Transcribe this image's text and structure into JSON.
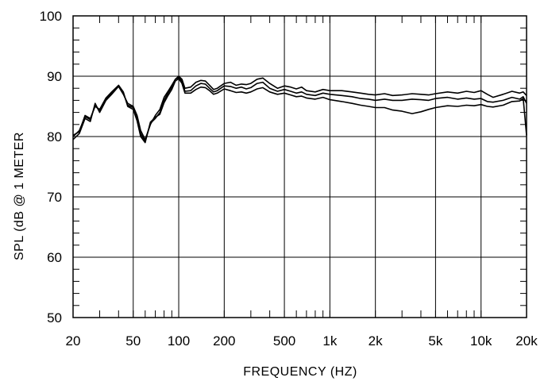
{
  "chart_data": {
    "type": "line",
    "title": "",
    "xlabel": "FREQUENCY  (HZ)",
    "ylabel": "SPL (dB @ 1 METER",
    "xscale": "log",
    "xlim": [
      20,
      20000
    ],
    "ylim": [
      50,
      100
    ],
    "grid": true,
    "legend": "none",
    "line_color": "#000000",
    "x_ticks": [
      {
        "value": 20,
        "label": "20"
      },
      {
        "value": 50,
        "label": "50"
      },
      {
        "value": 100,
        "label": "100"
      },
      {
        "value": 200,
        "label": "200"
      },
      {
        "value": 500,
        "label": "500"
      },
      {
        "value": 1000,
        "label": "1k"
      },
      {
        "value": 2000,
        "label": "2k"
      },
      {
        "value": 5000,
        "label": "5k"
      },
      {
        "value": 10000,
        "label": "10k"
      },
      {
        "value": 20000,
        "label": "20k"
      }
    ],
    "y_ticks": [
      {
        "value": 50,
        "label": "50"
      },
      {
        "value": 60,
        "label": "60"
      },
      {
        "value": 70,
        "label": "70"
      },
      {
        "value": 80,
        "label": "80"
      },
      {
        "value": 90,
        "label": "90"
      },
      {
        "value": 100,
        "label": "100"
      }
    ],
    "x": [
      20,
      22,
      24,
      26,
      28,
      30,
      33,
      36,
      40,
      43,
      46,
      50,
      53,
      56,
      60,
      65,
      70,
      75,
      80,
      85,
      90,
      95,
      100,
      105,
      110,
      120,
      130,
      140,
      150,
      160,
      170,
      180,
      200,
      220,
      240,
      260,
      280,
      300,
      330,
      360,
      400,
      450,
      500,
      550,
      600,
      650,
      700,
      800,
      900,
      1000,
      1200,
      1400,
      1600,
      1800,
      2000,
      2300,
      2600,
      3000,
      3500,
      4000,
      4500,
      5000,
      6000,
      7000,
      8000,
      9000,
      10000,
      11000,
      12000,
      14000,
      16000,
      18000,
      19000,
      20000
    ],
    "series": [
      {
        "values": [
          79.5,
          80.5,
          83.0,
          82.5,
          85.5,
          84.0,
          86.0,
          87.0,
          88.3,
          87.0,
          85.5,
          85.0,
          83.5,
          81.0,
          79.5,
          82.0,
          83.5,
          84.5,
          86.5,
          87.5,
          88.5,
          89.5,
          90.0,
          89.5,
          88.0,
          88.2,
          89.0,
          89.3,
          89.2,
          88.5,
          87.8,
          88.0,
          88.8,
          89.0,
          88.5,
          88.7,
          88.6,
          88.8,
          89.5,
          89.7,
          88.8,
          88.0,
          88.4,
          88.2,
          87.9,
          88.2,
          87.6,
          87.4,
          87.8,
          87.6,
          87.6,
          87.4,
          87.2,
          87.0,
          86.9,
          87.1,
          86.8,
          86.9,
          87.1,
          87.0,
          86.9,
          87.1,
          87.4,
          87.2,
          87.5,
          87.3,
          87.6,
          87.0,
          86.5,
          87.0,
          87.5,
          87.2,
          87.4,
          86.8
        ]
      },
      {
        "values": [
          80.0,
          81.0,
          83.3,
          82.8,
          85.2,
          84.2,
          86.2,
          87.2,
          88.4,
          87.2,
          85.2,
          84.8,
          83.0,
          80.5,
          79.2,
          82.2,
          83.0,
          84.0,
          86.0,
          87.2,
          88.2,
          89.5,
          89.8,
          89.2,
          87.5,
          87.6,
          88.4,
          88.8,
          88.7,
          88.0,
          87.4,
          87.6,
          88.4,
          88.3,
          88.0,
          88.2,
          87.9,
          88.1,
          88.8,
          89.0,
          88.0,
          87.5,
          87.8,
          87.5,
          87.2,
          87.4,
          87.0,
          86.8,
          87.2,
          87.0,
          86.8,
          86.6,
          86.3,
          86.2,
          86.0,
          86.2,
          86.0,
          86.0,
          86.2,
          86.1,
          86.0,
          86.3,
          86.5,
          86.2,
          86.4,
          86.2,
          86.3,
          85.8,
          85.7,
          86.0,
          86.5,
          86.2,
          86.6,
          85.5
        ]
      },
      {
        "values": [
          80.2,
          80.8,
          83.5,
          83.0,
          85.0,
          84.5,
          86.4,
          87.4,
          88.5,
          87.4,
          85.0,
          84.5,
          82.6,
          80.0,
          79.0,
          82.4,
          83.2,
          83.7,
          85.6,
          86.8,
          87.8,
          89.2,
          89.6,
          88.8,
          87.2,
          87.2,
          87.8,
          88.2,
          88.1,
          87.6,
          87.0,
          87.2,
          87.9,
          87.6,
          87.3,
          87.4,
          87.2,
          87.4,
          87.9,
          88.1,
          87.4,
          87.0,
          87.2,
          86.9,
          86.6,
          86.7,
          86.4,
          86.2,
          86.5,
          86.1,
          85.8,
          85.5,
          85.2,
          85.0,
          84.8,
          84.8,
          84.4,
          84.2,
          83.8,
          84.1,
          84.5,
          84.8,
          85.1,
          85.0,
          85.2,
          85.1,
          85.3,
          85.0,
          84.9,
          85.2,
          85.8,
          85.9,
          86.3,
          80.2
        ]
      }
    ]
  }
}
